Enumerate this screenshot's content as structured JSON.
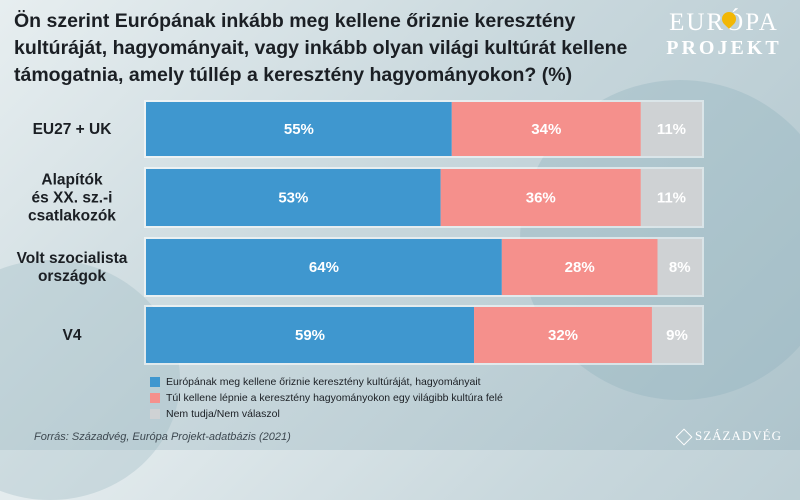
{
  "title": "Ön szerint Európának inkább meg kellene őriznie keresztény kultúráját, hagyományait, vagy inkább olyan világi kultúrát kellene támogatnia, amely túllép a keresztény hagyományokon? (%)",
  "logo": {
    "top": "EURÓPA",
    "bottom": "PROJEKT"
  },
  "source": "Forrás: Századvég, Európa Projekt-adatbázis (2021)",
  "publisher": "SZÁZADVÉG",
  "chart_data": {
    "type": "bar",
    "orientation": "horizontal",
    "stacked": true,
    "categories": [
      [
        "EU27 + UK"
      ],
      [
        "Alapítók",
        "és XX. sz.-i",
        "csatlakozók"
      ],
      [
        "Volt szocialista",
        "országok"
      ],
      [
        "V4"
      ]
    ],
    "series": [
      {
        "name": "Európának meg kellene őriznie keresztény kultúráját, hagyományait",
        "values": [
          55,
          53,
          64,
          59
        ],
        "color": "#3f97cf"
      },
      {
        "name": "Túl kellene lépnie a keresztény hagyományokon egy világibb kultúra felé",
        "values": [
          34,
          36,
          28,
          32
        ],
        "color": "#f5908c"
      },
      {
        "name": "Nem tudja/Nem válaszol",
        "values": [
          11,
          11,
          8,
          9
        ],
        "color": "#cfd2d4"
      }
    ],
    "xlim": [
      0,
      100
    ],
    "legend_position": "bottom"
  }
}
